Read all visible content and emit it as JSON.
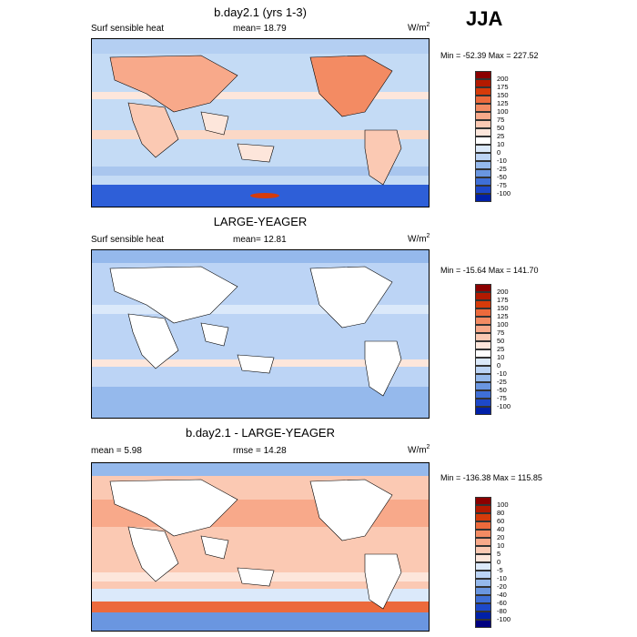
{
  "season": "JJA",
  "panels": [
    {
      "title": "b.day2.1 (yrs 1-3)",
      "variable": "Surf sensible heat",
      "stat_left": "",
      "stat_mid": "mean=  18.79",
      "unit": "W/m",
      "unit_sup": "2",
      "minmax": "Min = -52.39 Max = 227.52",
      "colorbar_labels": [
        "200",
        "175",
        "150",
        "125",
        "100",
        "75",
        "50",
        "25",
        "10",
        "0",
        "-10",
        "-25",
        "-50",
        "-75",
        "-100"
      ],
      "colorbar_colors": [
        "#8b0000",
        "#b31a00",
        "#d63b0a",
        "#ec6a3c",
        "#f38b63",
        "#f8a98a",
        "#fbc9b3",
        "#fde6db",
        "#ffffff",
        "#dbe9fa",
        "#bcd4f5",
        "#95b9ec",
        "#6a96e0",
        "#3f6fd6",
        "#1d48c9",
        "#0020a8"
      ]
    },
    {
      "title": "LARGE-YEAGER",
      "variable": "Surf sensible heat",
      "stat_left": "",
      "stat_mid": "mean=  12.81",
      "unit": "W/m",
      "unit_sup": "2",
      "minmax": "Min = -15.64 Max = 141.70",
      "colorbar_labels": [
        "200",
        "175",
        "150",
        "125",
        "100",
        "75",
        "50",
        "25",
        "10",
        "0",
        "-10",
        "-25",
        "-50",
        "-75",
        "-100"
      ],
      "colorbar_colors": [
        "#8b0000",
        "#b31a00",
        "#d63b0a",
        "#ec6a3c",
        "#f38b63",
        "#f8a98a",
        "#fbc9b3",
        "#fde6db",
        "#ffffff",
        "#dbe9fa",
        "#bcd4f5",
        "#95b9ec",
        "#6a96e0",
        "#3f6fd6",
        "#1d48c9",
        "#0020a8"
      ]
    },
    {
      "title": "b.day2.1 - LARGE-YEAGER",
      "variable": "",
      "stat_left": "mean =   5.98",
      "stat_mid": "rmse =  14.28",
      "unit": "W/m",
      "unit_sup": "2",
      "minmax": "Min = -136.38 Max = 115.85",
      "colorbar_labels": [
        "100",
        "80",
        "60",
        "40",
        "20",
        "10",
        "5",
        "0",
        "-5",
        "-10",
        "-20",
        "-40",
        "-60",
        "-80",
        "-100"
      ],
      "colorbar_colors": [
        "#8b0000",
        "#b31a00",
        "#d63b0a",
        "#ec6a3c",
        "#f38b63",
        "#f8a98a",
        "#fbc9b3",
        "#fde6db",
        "#dbe9fa",
        "#bcd4f5",
        "#95b9ec",
        "#6a96e0",
        "#3f6fd6",
        "#1d48c9",
        "#0020a8",
        "#000080"
      ]
    }
  ]
}
